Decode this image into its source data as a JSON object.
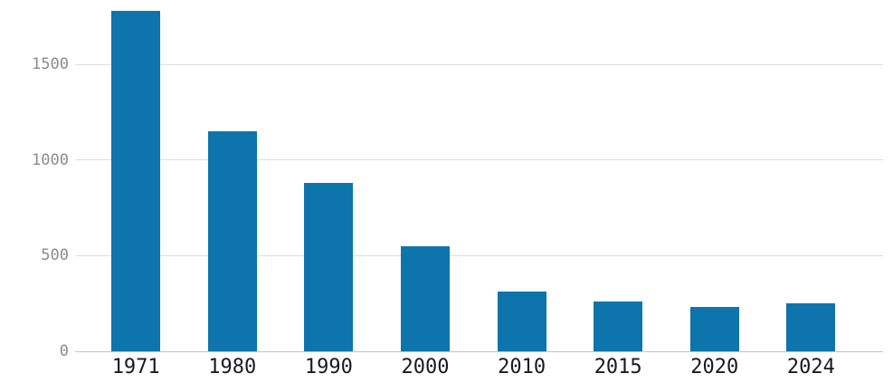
{
  "chart_data": {
    "type": "bar",
    "title": "",
    "xlabel": "",
    "ylabel": "",
    "categories": [
      "1971",
      "1980",
      "1990",
      "2000",
      "2010",
      "2015",
      "2020",
      "2024"
    ],
    "values": [
      1780,
      1150,
      880,
      550,
      310,
      260,
      230,
      250
    ],
    "yticks": [
      0,
      500,
      1000,
      1500
    ],
    "ytick_labels": [
      "0",
      "500",
      "1000",
      "1500"
    ],
    "ylim": [
      0,
      1835
    ],
    "grid": true,
    "legend": "none",
    "colors": {
      "bar": "#0d75ab",
      "gridline": "#dedede",
      "zero_line": "#c4c4c4",
      "y_tick_text": "#8c8c8c",
      "x_tick_text": "#191923",
      "background": "#ffffff"
    }
  }
}
